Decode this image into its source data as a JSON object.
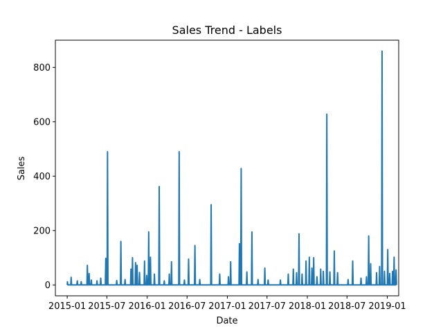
{
  "chart_data": {
    "type": "line",
    "title": "Sales Trend - Labels",
    "xlabel": "Date",
    "ylabel": "Sales",
    "xlim": [
      "2014-11-08",
      "2019-02-22"
    ],
    "ylim": [
      -40,
      900
    ],
    "x_ticks": [
      "2015-01-01",
      "2015-07-01",
      "2016-01-01",
      "2016-07-01",
      "2017-01-01",
      "2017-07-01",
      "2018-01-01",
      "2018-07-01",
      "2019-01-01"
    ],
    "x_tick_labels": [
      "2015-01",
      "2015-07",
      "2016-01",
      "2016-07",
      "2017-01",
      "2017-07",
      "2018-01",
      "2018-07",
      "2019-01"
    ],
    "y_ticks": [
      0,
      200,
      400,
      600,
      800
    ],
    "y_tick_labels": [
      "0",
      "200",
      "400",
      "600",
      "800"
    ],
    "grid": false,
    "line_color": "#1f77b4",
    "series": [
      {
        "points": [
          [
            "2015-01-01",
            0
          ],
          [
            "2015-01-02",
            12
          ],
          [
            "2015-01-04",
            0
          ],
          [
            "2015-01-17",
            0
          ],
          [
            "2015-01-19",
            28
          ],
          [
            "2015-01-21",
            0
          ],
          [
            "2015-02-14",
            0
          ],
          [
            "2015-02-16",
            15
          ],
          [
            "2015-02-18",
            0
          ],
          [
            "2015-03-04",
            0
          ],
          [
            "2015-03-06",
            12
          ],
          [
            "2015-03-08",
            0
          ],
          [
            "2015-04-01",
            0
          ],
          [
            "2015-04-03",
            72
          ],
          [
            "2015-04-05",
            0
          ],
          [
            "2015-04-09",
            0
          ],
          [
            "2015-04-11",
            42
          ],
          [
            "2015-04-13",
            0
          ],
          [
            "2015-04-19",
            0
          ],
          [
            "2015-04-21",
            18
          ],
          [
            "2015-04-23",
            0
          ],
          [
            "2015-05-15",
            0
          ],
          [
            "2015-05-17",
            15
          ],
          [
            "2015-05-19",
            0
          ],
          [
            "2015-06-01",
            0
          ],
          [
            "2015-06-03",
            25
          ],
          [
            "2015-06-05",
            0
          ],
          [
            "2015-06-24",
            0
          ],
          [
            "2015-06-26",
            98
          ],
          [
            "2015-06-28",
            0
          ],
          [
            "2015-07-02",
            0
          ],
          [
            "2015-07-04",
            490
          ],
          [
            "2015-07-06",
            0
          ],
          [
            "2015-08-13",
            0
          ],
          [
            "2015-08-15",
            16
          ],
          [
            "2015-08-17",
            0
          ],
          [
            "2015-09-01",
            0
          ],
          [
            "2015-09-03",
            160
          ],
          [
            "2015-09-05",
            0
          ],
          [
            "2015-09-20",
            0
          ],
          [
            "2015-09-22",
            20
          ],
          [
            "2015-09-24",
            0
          ],
          [
            "2015-10-17",
            0
          ],
          [
            "2015-10-19",
            58
          ],
          [
            "2015-10-21",
            0
          ],
          [
            "2015-10-24",
            0
          ],
          [
            "2015-10-26",
            100
          ],
          [
            "2015-10-28",
            0
          ],
          [
            "2015-11-07",
            0
          ],
          [
            "2015-11-09",
            82
          ],
          [
            "2015-11-11",
            0
          ],
          [
            "2015-11-14",
            0
          ],
          [
            "2015-11-16",
            72
          ],
          [
            "2015-11-18",
            0
          ],
          [
            "2015-11-25",
            0
          ],
          [
            "2015-11-27",
            46
          ],
          [
            "2015-11-29",
            0
          ],
          [
            "2015-12-18",
            0
          ],
          [
            "2015-12-20",
            88
          ],
          [
            "2015-12-22",
            0
          ],
          [
            "2015-12-28",
            0
          ],
          [
            "2015-12-30",
            35
          ],
          [
            "2016-01-01",
            0
          ],
          [
            "2016-01-06",
            0
          ],
          [
            "2016-01-08",
            195
          ],
          [
            "2016-01-10",
            0
          ],
          [
            "2016-01-14",
            0
          ],
          [
            "2016-01-16",
            102
          ],
          [
            "2016-01-18",
            0
          ],
          [
            "2016-02-01",
            0
          ],
          [
            "2016-02-03",
            40
          ],
          [
            "2016-02-05",
            0
          ],
          [
            "2016-02-23",
            0
          ],
          [
            "2016-02-25",
            362
          ],
          [
            "2016-02-27",
            0
          ],
          [
            "2016-03-17",
            0
          ],
          [
            "2016-03-19",
            15
          ],
          [
            "2016-03-21",
            0
          ],
          [
            "2016-04-09",
            0
          ],
          [
            "2016-04-11",
            40
          ],
          [
            "2016-04-13",
            0
          ],
          [
            "2016-04-19",
            0
          ],
          [
            "2016-04-21",
            85
          ],
          [
            "2016-04-23",
            0
          ],
          [
            "2016-05-24",
            0
          ],
          [
            "2016-05-26",
            490
          ],
          [
            "2016-05-28",
            0
          ],
          [
            "2016-06-17",
            0
          ],
          [
            "2016-06-19",
            18
          ],
          [
            "2016-06-21",
            0
          ],
          [
            "2016-07-06",
            0
          ],
          [
            "2016-07-08",
            95
          ],
          [
            "2016-07-10",
            0
          ],
          [
            "2016-08-04",
            0
          ],
          [
            "2016-08-06",
            145
          ],
          [
            "2016-08-08",
            0
          ],
          [
            "2016-08-26",
            0
          ],
          [
            "2016-08-28",
            20
          ],
          [
            "2016-08-30",
            0
          ],
          [
            "2016-10-17",
            0
          ],
          [
            "2016-10-19",
            295
          ],
          [
            "2016-10-21",
            0
          ],
          [
            "2016-11-25",
            0
          ],
          [
            "2016-11-27",
            40
          ],
          [
            "2016-11-29",
            0
          ],
          [
            "2017-01-04",
            0
          ],
          [
            "2017-01-06",
            30
          ],
          [
            "2017-01-08",
            0
          ],
          [
            "2017-01-14",
            0
          ],
          [
            "2017-01-16",
            85
          ],
          [
            "2017-01-18",
            0
          ],
          [
            "2017-02-23",
            0
          ],
          [
            "2017-02-25",
            152
          ],
          [
            "2017-02-27",
            0
          ],
          [
            "2017-03-03",
            0
          ],
          [
            "2017-03-05",
            428
          ],
          [
            "2017-03-07",
            0
          ],
          [
            "2017-03-29",
            0
          ],
          [
            "2017-03-31",
            48
          ],
          [
            "2017-04-02",
            0
          ],
          [
            "2017-04-21",
            0
          ],
          [
            "2017-04-23",
            195
          ],
          [
            "2017-04-25",
            0
          ],
          [
            "2017-05-19",
            0
          ],
          [
            "2017-05-21",
            20
          ],
          [
            "2017-05-23",
            0
          ],
          [
            "2017-06-19",
            0
          ],
          [
            "2017-06-21",
            62
          ],
          [
            "2017-06-23",
            0
          ],
          [
            "2017-07-04",
            0
          ],
          [
            "2017-07-06",
            18
          ],
          [
            "2017-07-08",
            0
          ],
          [
            "2017-08-29",
            0
          ],
          [
            "2017-08-31",
            18
          ],
          [
            "2017-09-02",
            0
          ],
          [
            "2017-10-04",
            0
          ],
          [
            "2017-10-06",
            40
          ],
          [
            "2017-10-08",
            0
          ],
          [
            "2017-10-27",
            0
          ],
          [
            "2017-10-29",
            58
          ],
          [
            "2017-10-31",
            0
          ],
          [
            "2017-11-11",
            0
          ],
          [
            "2017-11-13",
            45
          ],
          [
            "2017-11-15",
            0
          ],
          [
            "2017-11-22",
            0
          ],
          [
            "2017-11-24",
            188
          ],
          [
            "2017-11-26",
            0
          ],
          [
            "2017-12-06",
            0
          ],
          [
            "2017-12-08",
            40
          ],
          [
            "2017-12-10",
            0
          ],
          [
            "2017-12-24",
            0
          ],
          [
            "2017-12-26",
            88
          ],
          [
            "2017-12-28",
            0
          ],
          [
            "2018-01-08",
            0
          ],
          [
            "2018-01-10",
            102
          ],
          [
            "2018-01-12",
            0
          ],
          [
            "2018-01-20",
            0
          ],
          [
            "2018-01-22",
            62
          ],
          [
            "2018-01-24",
            0
          ],
          [
            "2018-01-28",
            0
          ],
          [
            "2018-01-30",
            100
          ],
          [
            "2018-02-01",
            0
          ],
          [
            "2018-02-12",
            0
          ],
          [
            "2018-02-14",
            30
          ],
          [
            "2018-02-16",
            0
          ],
          [
            "2018-03-01",
            0
          ],
          [
            "2018-03-03",
            58
          ],
          [
            "2018-03-05",
            0
          ],
          [
            "2018-03-13",
            0
          ],
          [
            "2018-03-15",
            50
          ],
          [
            "2018-03-17",
            0
          ],
          [
            "2018-03-29",
            0
          ],
          [
            "2018-03-31",
            628
          ],
          [
            "2018-04-02",
            0
          ],
          [
            "2018-04-12",
            0
          ],
          [
            "2018-04-14",
            48
          ],
          [
            "2018-04-16",
            0
          ],
          [
            "2018-05-02",
            0
          ],
          [
            "2018-05-04",
            125
          ],
          [
            "2018-05-06",
            0
          ],
          [
            "2018-05-17",
            0
          ],
          [
            "2018-05-19",
            45
          ],
          [
            "2018-05-21",
            0
          ],
          [
            "2018-07-04",
            0
          ],
          [
            "2018-07-06",
            20
          ],
          [
            "2018-07-08",
            0
          ],
          [
            "2018-07-25",
            0
          ],
          [
            "2018-07-27",
            88
          ],
          [
            "2018-07-29",
            0
          ],
          [
            "2018-09-01",
            0
          ],
          [
            "2018-09-03",
            25
          ],
          [
            "2018-09-05",
            0
          ],
          [
            "2018-09-26",
            0
          ],
          [
            "2018-09-28",
            30
          ],
          [
            "2018-09-30",
            0
          ],
          [
            "2018-10-06",
            0
          ],
          [
            "2018-10-08",
            180
          ],
          [
            "2018-10-10",
            0
          ],
          [
            "2018-10-15",
            0
          ],
          [
            "2018-10-17",
            78
          ],
          [
            "2018-10-19",
            0
          ],
          [
            "2018-11-11",
            0
          ],
          [
            "2018-11-13",
            45
          ],
          [
            "2018-11-15",
            0
          ],
          [
            "2018-11-25",
            0
          ],
          [
            "2018-11-27",
            68
          ],
          [
            "2018-11-29",
            0
          ],
          [
            "2018-12-06",
            0
          ],
          [
            "2018-12-08",
            860
          ],
          [
            "2018-12-10",
            0
          ],
          [
            "2018-12-17",
            0
          ],
          [
            "2018-12-19",
            50
          ],
          [
            "2018-12-21",
            0
          ],
          [
            "2019-01-01",
            0
          ],
          [
            "2019-01-03",
            130
          ],
          [
            "2019-01-05",
            0
          ],
          [
            "2019-01-10",
            0
          ],
          [
            "2019-01-12",
            42
          ],
          [
            "2019-01-14",
            0
          ],
          [
            "2019-01-23",
            0
          ],
          [
            "2019-01-25",
            50
          ],
          [
            "2019-01-27",
            0
          ],
          [
            "2019-01-30",
            0
          ],
          [
            "2019-02-01",
            102
          ],
          [
            "2019-02-03",
            0
          ],
          [
            "2019-02-08",
            0
          ],
          [
            "2019-02-10",
            55
          ],
          [
            "2019-02-12",
            0
          ]
        ]
      }
    ]
  }
}
